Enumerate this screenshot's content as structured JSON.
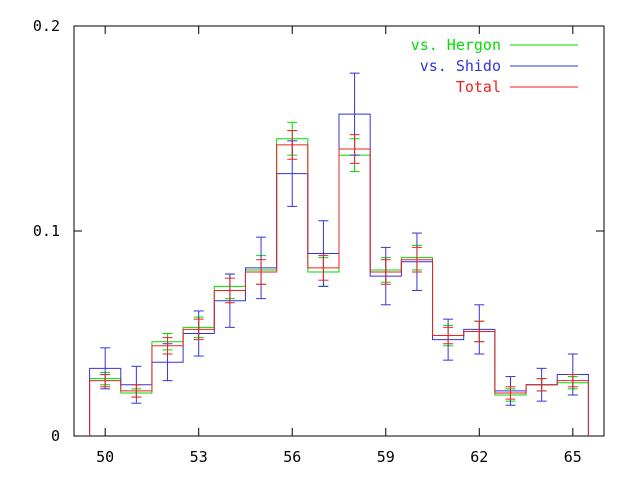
{
  "chart_data": {
    "type": "line",
    "title": "",
    "xlabel": "",
    "ylabel": "",
    "xlim": [
      49,
      66
    ],
    "ylim": [
      0,
      0.2
    ],
    "grid": false,
    "legend_position": "top-right",
    "x_ticks": [
      {
        "value": 50,
        "label": "50"
      },
      {
        "value": 53,
        "label": "53"
      },
      {
        "value": 56,
        "label": "56"
      },
      {
        "value": 59,
        "label": "59"
      },
      {
        "value": 62,
        "label": "62"
      },
      {
        "value": 65,
        "label": "65"
      }
    ],
    "y_ticks": [
      {
        "value": 0,
        "label": "0"
      },
      {
        "value": 0.1,
        "label": "0.1"
      },
      {
        "value": 0.2,
        "label": "0.2"
      }
    ],
    "bin_edges": [
      49.5,
      50.5,
      51.5,
      52.5,
      53.5,
      54.5,
      55.5,
      56.5,
      57.5,
      58.5,
      59.5,
      60.5,
      61.5,
      62.5,
      63.5,
      64.5,
      65.5
    ],
    "x": [
      50,
      51,
      52,
      53,
      54,
      55,
      56,
      57,
      58,
      59,
      60,
      61,
      62,
      63,
      64,
      65
    ],
    "series": [
      {
        "name": "vs. Hergon",
        "color": "#00dd00",
        "values": [
          0.028,
          0.021,
          0.046,
          0.053,
          0.073,
          0.081,
          0.145,
          0.08,
          0.137,
          0.081,
          0.087,
          0.049,
          0.051,
          0.02,
          0.025,
          0.026
        ],
        "errors": [
          0.003,
          0.002,
          0.004,
          0.005,
          0.006,
          0.007,
          0.008,
          0.007,
          0.008,
          0.006,
          0.006,
          0.005,
          0.005,
          0.003,
          0.003,
          0.003
        ]
      },
      {
        "name": "vs. Shido",
        "color": "#3333dd",
        "values": [
          0.033,
          0.025,
          0.036,
          0.05,
          0.066,
          0.082,
          0.128,
          0.089,
          0.157,
          0.078,
          0.085,
          0.047,
          0.052,
          0.022,
          0.025,
          0.03
        ],
        "errors": [
          0.01,
          0.009,
          0.009,
          0.011,
          0.013,
          0.015,
          0.016,
          0.016,
          0.02,
          0.014,
          0.014,
          0.01,
          0.012,
          0.007,
          0.008,
          0.01
        ]
      },
      {
        "name": "Total",
        "color": "#ee2222",
        "values": [
          0.027,
          0.022,
          0.044,
          0.052,
          0.071,
          0.08,
          0.142,
          0.082,
          0.14,
          0.08,
          0.086,
          0.049,
          0.051,
          0.021,
          0.025,
          0.027
        ],
        "errors": [
          0.003,
          0.003,
          0.004,
          0.005,
          0.006,
          0.006,
          0.007,
          0.006,
          0.007,
          0.006,
          0.006,
          0.004,
          0.005,
          0.003,
          0.003,
          0.003
        ]
      }
    ]
  }
}
